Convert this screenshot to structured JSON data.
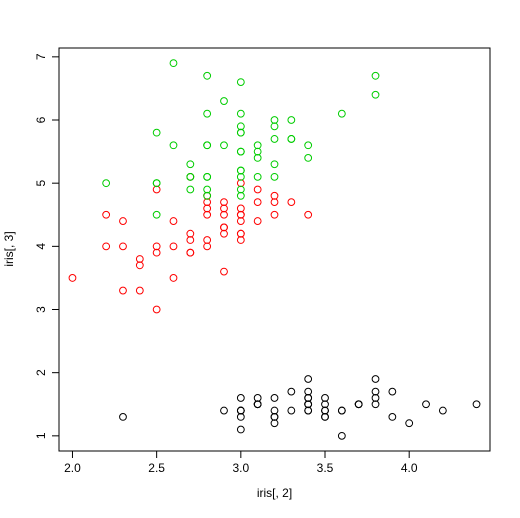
{
  "chart_data": {
    "type": "scatter",
    "title": "",
    "xlabel": "iris[, 2]",
    "ylabel": "iris[, 3]",
    "xlim": [
      1.92,
      4.48
    ],
    "ylim": [
      0.76,
      7.14
    ],
    "xticks": [
      2.0,
      2.5,
      3.0,
      3.5,
      4.0
    ],
    "xtick_labels": [
      "2.0",
      "2.5",
      "3.0",
      "3.5",
      "4.0"
    ],
    "yticks": [
      1,
      2,
      3,
      4,
      5,
      6,
      7
    ],
    "ytick_labels": [
      "1",
      "2",
      "3",
      "4",
      "5",
      "6",
      "7"
    ],
    "grid": false,
    "legend": "none",
    "marker": "open-circle",
    "series": [
      {
        "color": "#000000",
        "x": [
          3.5,
          3.0,
          3.2,
          3.1,
          3.6,
          3.9,
          3.4,
          3.4,
          2.9,
          3.1,
          3.7,
          3.4,
          3.0,
          3.0,
          4.0,
          4.4,
          3.9,
          3.5,
          3.8,
          3.8,
          3.4,
          3.7,
          3.6,
          3.3,
          3.4,
          3.0,
          3.4,
          3.5,
          3.4,
          3.2,
          3.1,
          3.4,
          4.1,
          4.2,
          3.1,
          3.2,
          3.5,
          3.6,
          3.0,
          3.4,
          3.5,
          2.3,
          3.2,
          3.5,
          3.8,
          3.0,
          3.8,
          3.2,
          3.7,
          3.3
        ],
        "y": [
          1.4,
          1.4,
          1.3,
          1.5,
          1.4,
          1.7,
          1.4,
          1.5,
          1.4,
          1.5,
          1.5,
          1.6,
          1.4,
          1.1,
          1.2,
          1.5,
          1.3,
          1.4,
          1.7,
          1.5,
          1.7,
          1.5,
          1.0,
          1.7,
          1.9,
          1.6,
          1.6,
          1.5,
          1.4,
          1.6,
          1.6,
          1.5,
          1.5,
          1.4,
          1.5,
          1.2,
          1.3,
          1.4,
          1.3,
          1.5,
          1.3,
          1.3,
          1.3,
          1.6,
          1.9,
          1.4,
          1.6,
          1.4,
          1.5,
          1.4
        ]
      },
      {
        "color": "#ff0000",
        "x": [
          3.2,
          3.2,
          3.1,
          2.3,
          2.8,
          2.8,
          3.3,
          2.4,
          2.9,
          2.7,
          2.0,
          3.0,
          2.2,
          2.9,
          2.9,
          3.1,
          3.0,
          2.7,
          2.2,
          2.5,
          3.2,
          2.8,
          2.5,
          2.8,
          2.9,
          3.0,
          2.8,
          3.0,
          2.9,
          2.6,
          2.4,
          2.4,
          2.7,
          2.7,
          3.0,
          3.4,
          3.1,
          2.3,
          3.0,
          2.5,
          2.6,
          3.0,
          2.6,
          2.3,
          2.7,
          3.0,
          2.9,
          2.9,
          2.5,
          2.8
        ],
        "y": [
          4.7,
          4.5,
          4.9,
          4.0,
          4.6,
          4.5,
          4.7,
          3.3,
          4.6,
          3.9,
          3.5,
          4.2,
          4.0,
          4.7,
          3.6,
          4.4,
          4.5,
          4.1,
          4.5,
          3.9,
          4.8,
          4.0,
          4.9,
          4.7,
          4.3,
          4.4,
          4.8,
          5.0,
          4.5,
          3.5,
          3.8,
          3.7,
          3.9,
          5.1,
          4.5,
          4.5,
          4.7,
          4.4,
          4.1,
          4.0,
          4.4,
          4.6,
          4.0,
          3.3,
          4.2,
          4.2,
          4.2,
          4.3,
          3.0,
          4.1
        ]
      },
      {
        "color": "#00cd00",
        "x": [
          3.3,
          2.7,
          3.0,
          2.9,
          3.0,
          3.0,
          2.5,
          2.9,
          2.5,
          3.6,
          3.2,
          2.7,
          3.0,
          2.5,
          2.8,
          3.2,
          3.0,
          3.8,
          2.6,
          2.2,
          3.2,
          2.8,
          2.8,
          2.7,
          3.3,
          3.2,
          2.8,
          3.0,
          2.8,
          3.0,
          2.8,
          3.8,
          2.8,
          2.8,
          2.6,
          3.0,
          3.4,
          3.1,
          3.0,
          3.1,
          3.1,
          3.1,
          2.7,
          3.2,
          3.3,
          3.0,
          2.5,
          3.0,
          3.4,
          3.0
        ],
        "y": [
          6.0,
          5.1,
          5.9,
          5.6,
          5.8,
          6.6,
          4.5,
          6.3,
          5.8,
          6.1,
          5.1,
          5.3,
          5.5,
          5.0,
          5.1,
          5.3,
          5.5,
          6.7,
          6.9,
          5.0,
          5.7,
          4.9,
          6.7,
          4.9,
          5.7,
          6.0,
          4.8,
          4.9,
          5.6,
          5.8,
          6.1,
          6.4,
          5.6,
          5.1,
          5.6,
          6.1,
          5.6,
          5.5,
          4.8,
          5.4,
          5.6,
          5.1,
          5.1,
          5.9,
          5.7,
          5.2,
          5.0,
          5.2,
          5.4,
          5.1
        ]
      }
    ]
  }
}
